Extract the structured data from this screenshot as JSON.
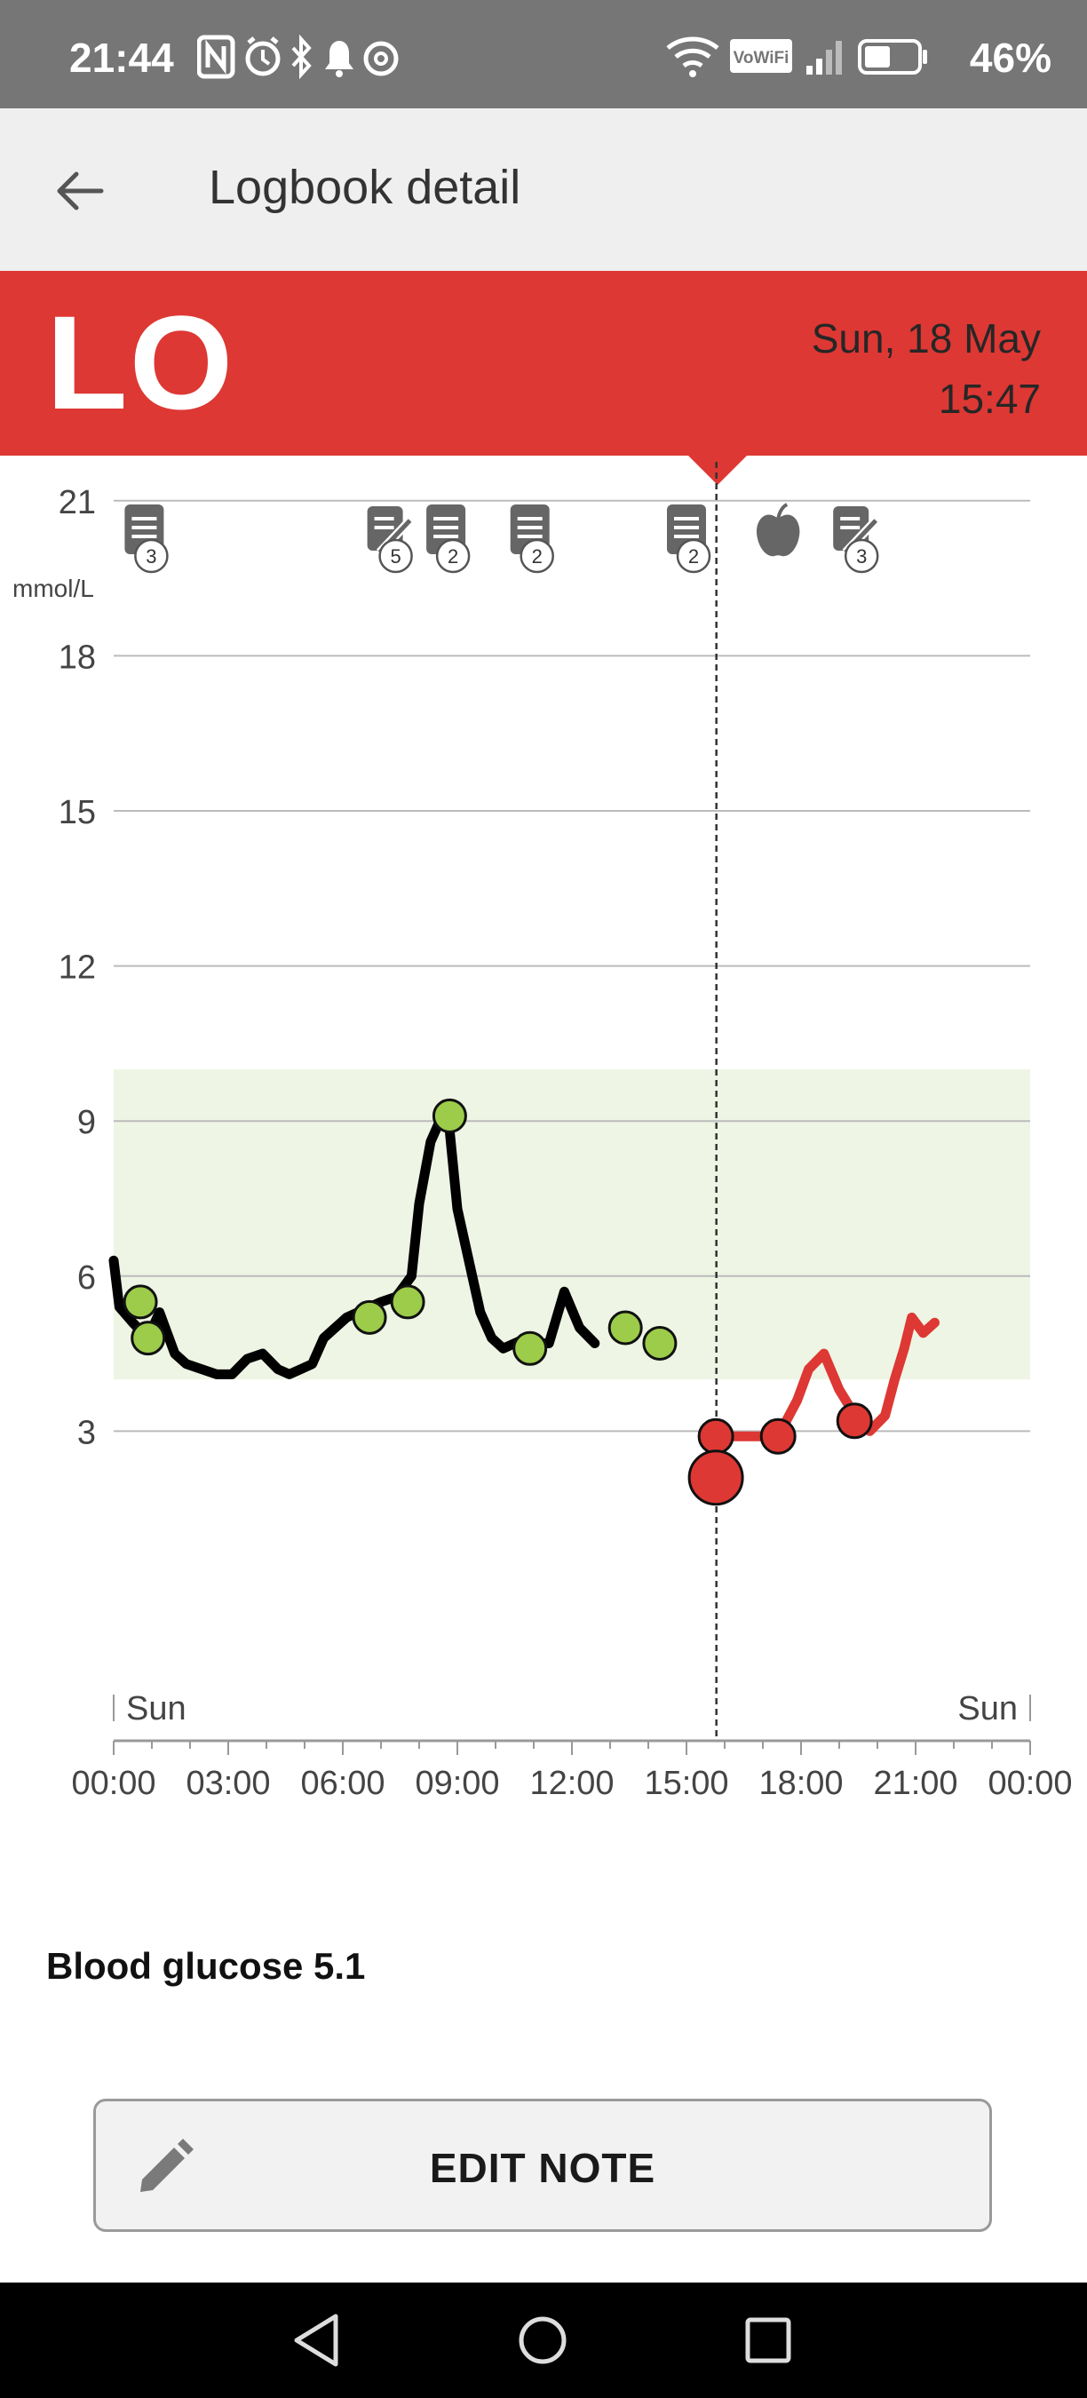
{
  "status_bar": {
    "time": "21:44",
    "battery": "46%",
    "icons": [
      "nfc-icon",
      "alarm-icon",
      "bluetooth-icon",
      "bell-icon",
      "threads-icon",
      "wifi-icon",
      "vowifi-icon",
      "signal-icon",
      "battery-icon"
    ],
    "vowifi_label": "VoWiFi"
  },
  "app_bar": {
    "title": "Logbook detail"
  },
  "banner": {
    "reading": "LO",
    "date": "Sun, 18 May",
    "time": "15:47",
    "color": "#dd3834"
  },
  "chart_data": {
    "type": "line",
    "ylabel": "mmol/L",
    "ylim": [
      0,
      22
    ],
    "yticks": [
      "21",
      "18",
      "15",
      "12",
      "9",
      "6",
      "3"
    ],
    "target_range": [
      4,
      10
    ],
    "xlim": [
      "00:00",
      "24:00"
    ],
    "xticks": [
      "00:00",
      "03:00",
      "06:00",
      "09:00",
      "12:00",
      "15:00",
      "18:00",
      "21:00",
      "00:00"
    ],
    "day_labels": [
      "Sun",
      "Sun"
    ],
    "cursor_time": "15:47",
    "series": [
      {
        "color": "#000000",
        "hours": [
          0.0,
          0.15,
          0.5,
          0.9,
          1.2,
          1.6,
          1.9,
          2.3,
          2.7,
          3.1,
          3.5,
          3.9,
          4.3,
          4.6,
          4.9,
          5.2,
          5.5,
          5.8,
          6.1,
          6.4,
          6.7,
          7.0,
          7.4,
          7.8,
          8.0,
          8.3,
          8.6,
          8.8,
          9.0,
          9.3,
          9.6,
          9.9,
          10.2,
          10.5,
          10.8,
          11.1,
          11.4,
          11.8,
          12.2,
          12.6,
          13.0,
          13.3,
          13.6,
          14.0,
          14.4,
          14.8,
          15.2,
          15.5,
          15.77
        ],
        "values": [
          6.3,
          5.4,
          5.1,
          4.8,
          5.3,
          4.5,
          4.3,
          4.2,
          4.1,
          4.1,
          4.4,
          4.5,
          4.2,
          4.1,
          4.2,
          4.3,
          4.8,
          5.0,
          5.2,
          5.3,
          5.4,
          5.5,
          5.6,
          6.0,
          7.4,
          8.6,
          9.1,
          8.8,
          7.3,
          6.3,
          5.3,
          4.8,
          4.6,
          4.7,
          4.8,
          4.7,
          4.7,
          5.7,
          5.0,
          4.7,
          null,
          null,
          null,
          null,
          null,
          null,
          null,
          null,
          2.9
        ]
      },
      {
        "color": "#dd3834",
        "hours": [
          15.77,
          16.5,
          17.4,
          17.9,
          18.2,
          18.6,
          19.0,
          19.5,
          19.8,
          20.2,
          20.45,
          20.7,
          20.9,
          21.2,
          21.5
        ],
        "values": [
          2.9,
          2.9,
          2.9,
          3.6,
          4.2,
          4.5,
          3.8,
          3.2,
          3.0,
          3.3,
          4.0,
          4.6,
          5.2,
          4.9,
          5.1
        ]
      }
    ],
    "green_points": [
      {
        "h": 0.7,
        "v": 5.5
      },
      {
        "h": 0.9,
        "v": 4.8
      },
      {
        "h": 6.7,
        "v": 5.2
      },
      {
        "h": 7.7,
        "v": 5.5
      },
      {
        "h": 8.8,
        "v": 9.1
      },
      {
        "h": 10.9,
        "v": 4.6
      },
      {
        "h": 13.4,
        "v": 5.0
      },
      {
        "h": 14.3,
        "v": 4.7
      }
    ],
    "red_points": [
      {
        "h": 15.77,
        "v": 2.9,
        "big": false
      },
      {
        "h": 15.77,
        "v": 2.1,
        "big": true
      },
      {
        "h": 17.4,
        "v": 2.9,
        "big": false
      },
      {
        "h": 19.4,
        "v": 3.2,
        "big": false
      }
    ],
    "markers": [
      {
        "h": 0.8,
        "icon": "note-icon",
        "count": "3"
      },
      {
        "h": 7.2,
        "icon": "insulin-pen-icon",
        "count": "5"
      },
      {
        "h": 8.7,
        "icon": "note-icon",
        "count": "2"
      },
      {
        "h": 10.9,
        "icon": "note-icon",
        "count": "2"
      },
      {
        "h": 15.0,
        "icon": "note-icon",
        "count": "2"
      },
      {
        "h": 17.4,
        "icon": "apple-icon",
        "count": ""
      },
      {
        "h": 19.4,
        "icon": "insulin-pen-icon",
        "count": "3"
      }
    ]
  },
  "detail": {
    "blood_glucose": "Blood glucose 5.1"
  },
  "edit_button": {
    "label": "EDIT NOTE"
  },
  "nav_bar": {
    "items": [
      "back-nav-icon",
      "home-nav-icon",
      "recents-nav-icon"
    ]
  }
}
